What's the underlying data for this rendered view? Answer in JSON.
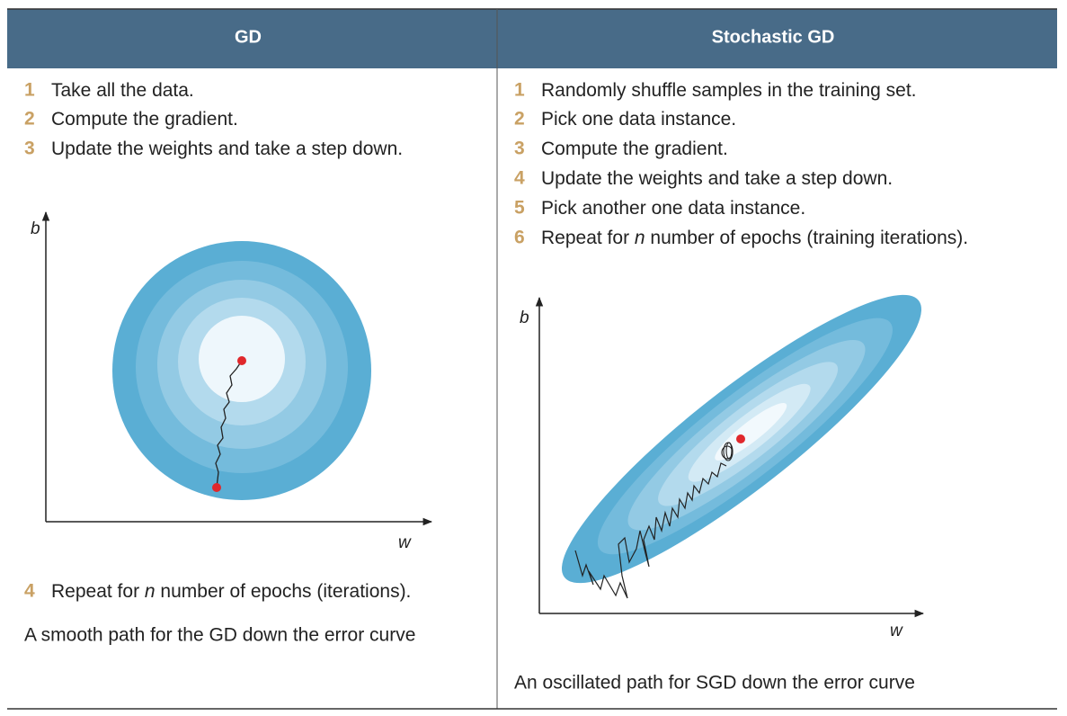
{
  "table": {
    "headers": [
      "GD",
      "Stochastic GD"
    ],
    "columns": [
      {
        "steps": [
          {
            "number": "1",
            "text": [
              "Take all the data."
            ]
          },
          {
            "number": "2",
            "text": [
              "Compute the gradient."
            ]
          },
          {
            "number": "3",
            "text": [
              "Update the weights and take a step down."
            ]
          },
          {
            "number": "4",
            "text": [
              "Repeat for ",
              "n",
              " number of epochs (iterations)."
            ]
          }
        ],
        "diagram": {
          "y_axis_label": "b",
          "x_axis_label": "w"
        },
        "caption": "A smooth path for the GD down the error curve"
      },
      {
        "steps": [
          {
            "number": "1",
            "text": [
              "Randomly shuffle samples in the training set."
            ]
          },
          {
            "number": "2",
            "text": [
              "Pick one data instance."
            ]
          },
          {
            "number": "3",
            "text": [
              "Compute the gradient."
            ]
          },
          {
            "number": "4",
            "text": [
              "Update the weights and take a step down."
            ]
          },
          {
            "number": "5",
            "text": [
              "Pick another one data instance."
            ]
          },
          {
            "number": "6",
            "text": [
              "Repeat for ",
              "n",
              " number of epochs (training iterations)."
            ]
          }
        ],
        "diagram": {
          "y_axis_label": "b",
          "x_axis_label": "w"
        },
        "caption": "An oscillated path for SGD down the error curve"
      }
    ]
  }
}
